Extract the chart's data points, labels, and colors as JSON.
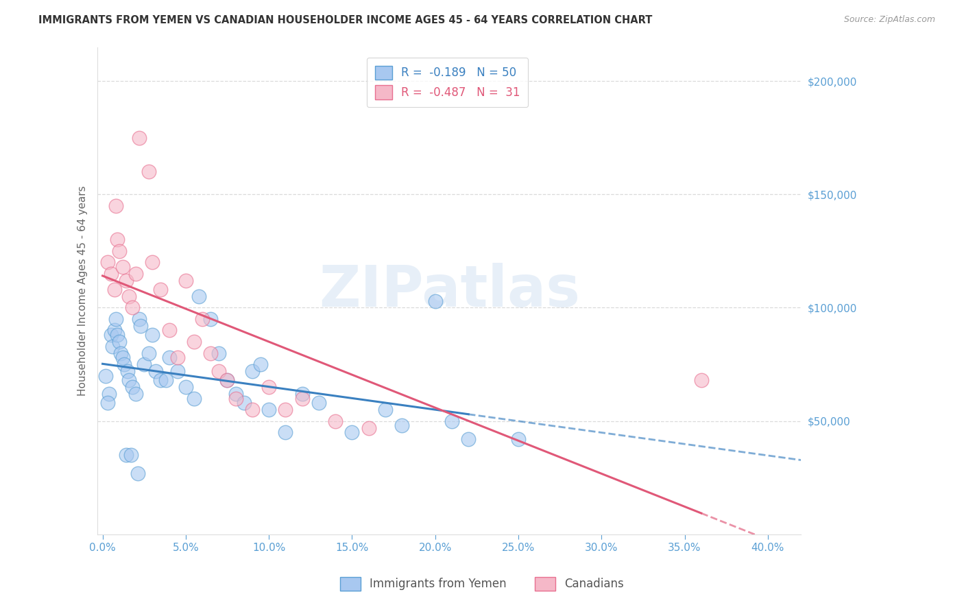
{
  "title": "IMMIGRANTS FROM YEMEN VS CANADIAN HOUSEHOLDER INCOME AGES 45 - 64 YEARS CORRELATION CHART",
  "source": "Source: ZipAtlas.com",
  "ylabel": "Householder Income Ages 45 - 64 years",
  "ylim": [
    0,
    215000
  ],
  "xlim": [
    -0.3,
    42
  ],
  "legend1_r": "-0.189",
  "legend1_n": "50",
  "legend2_r": "-0.487",
  "legend2_n": "31",
  "watermark": "ZIPatlas",
  "blue_scatter_color": "#A8C8F0",
  "blue_edge_color": "#5A9FD4",
  "pink_scatter_color": "#F5B8C8",
  "pink_edge_color": "#E87090",
  "blue_line_color": "#3A80C0",
  "pink_line_color": "#E05878",
  "axis_tick_color": "#5A9FD4",
  "ylabel_color": "#666666",
  "title_color": "#333333",
  "source_color": "#999999",
  "grid_color": "#D8D8D8",
  "background_color": "#FFFFFF",
  "blue_x": [
    0.5,
    0.6,
    0.7,
    0.8,
    0.9,
    1.0,
    1.1,
    1.2,
    1.3,
    1.4,
    1.5,
    1.6,
    1.7,
    1.8,
    2.0,
    2.1,
    2.2,
    2.3,
    2.5,
    2.8,
    3.0,
    3.2,
    3.5,
    3.8,
    4.0,
    4.5,
    5.0,
    5.5,
    5.8,
    6.5,
    7.0,
    7.5,
    8.0,
    8.5,
    9.0,
    9.5,
    10.0,
    11.0,
    12.0,
    13.0,
    15.0,
    17.0,
    18.0,
    20.0,
    21.0,
    22.0,
    25.0,
    0.4,
    0.3,
    0.2
  ],
  "blue_y": [
    88000,
    83000,
    90000,
    95000,
    88000,
    85000,
    80000,
    78000,
    75000,
    35000,
    72000,
    68000,
    35000,
    65000,
    62000,
    27000,
    95000,
    92000,
    75000,
    80000,
    88000,
    72000,
    68000,
    68000,
    78000,
    72000,
    65000,
    60000,
    105000,
    95000,
    80000,
    68000,
    62000,
    58000,
    72000,
    75000,
    55000,
    45000,
    62000,
    58000,
    45000,
    55000,
    48000,
    103000,
    50000,
    42000,
    42000,
    62000,
    58000,
    70000
  ],
  "pink_x": [
    0.3,
    0.5,
    0.7,
    0.8,
    0.9,
    1.0,
    1.2,
    1.4,
    1.6,
    1.8,
    2.0,
    2.2,
    2.8,
    3.0,
    3.5,
    4.0,
    4.5,
    5.0,
    5.5,
    6.0,
    6.5,
    7.0,
    7.5,
    8.0,
    9.0,
    10.0,
    11.0,
    12.0,
    14.0,
    36.0,
    16.0
  ],
  "pink_y": [
    120000,
    115000,
    108000,
    145000,
    130000,
    125000,
    118000,
    112000,
    105000,
    100000,
    115000,
    175000,
    160000,
    120000,
    108000,
    90000,
    78000,
    112000,
    85000,
    95000,
    80000,
    72000,
    68000,
    60000,
    55000,
    65000,
    55000,
    60000,
    50000,
    68000,
    47000
  ]
}
